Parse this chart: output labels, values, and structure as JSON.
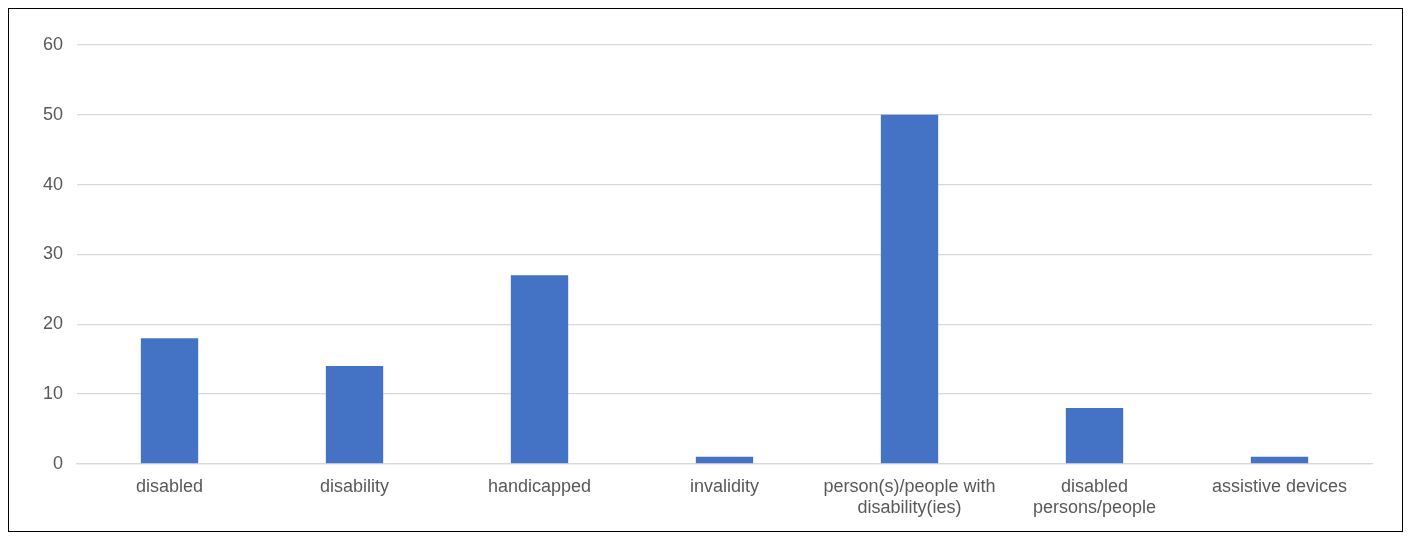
{
  "chart_data": {
    "type": "bar",
    "categories": [
      "disabled",
      "disability",
      "handicapped",
      "invalidity",
      "person(s)/people with disability(ies)",
      "disabled persons/people",
      "assistive devices"
    ],
    "values": [
      18,
      14,
      27,
      1,
      50,
      8,
      1
    ],
    "color": "#4472c4",
    "ylim": [
      0,
      60
    ],
    "yticks": [
      0,
      10,
      20,
      30,
      40,
      50,
      60
    ],
    "grid": "y",
    "legend": false
  }
}
